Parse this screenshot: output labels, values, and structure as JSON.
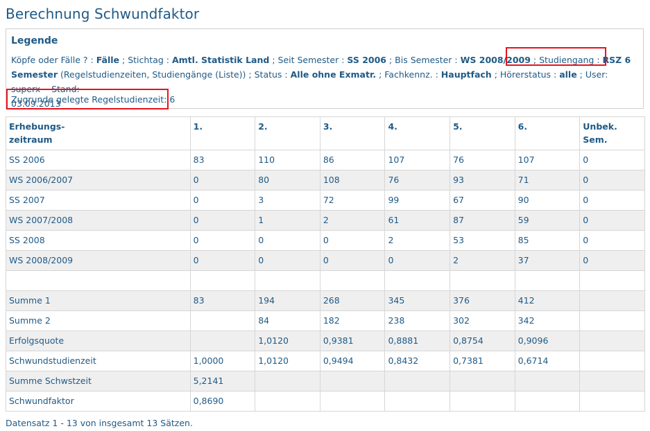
{
  "page": {
    "title": "Berechnung Schwundfaktor",
    "footer": "Datensatz 1 - 13 von insgesamt 13 Sätzen."
  },
  "legend": {
    "title": "Legende",
    "items": [
      {
        "label": "Köpfe oder Fälle ? :",
        "value": "Fälle"
      },
      {
        "label": "Stichtag :",
        "value": "Amtl. Statistik Land"
      },
      {
        "label": "Seit Semester :",
        "value": "SS 2006"
      },
      {
        "label": "Bis Semester :",
        "value": "WS 2008/2009"
      },
      {
        "label": "Studiengang :",
        "value": "RSZ 6"
      },
      {
        "label": "",
        "value": "Semester",
        "suffix": "(Regelstudienzeiten, Studiengänge (Liste))"
      },
      {
        "label": "Status :",
        "value": "Alle ohne Exmatr."
      },
      {
        "label": "Fachkennz. :",
        "value": "Hauptfach"
      },
      {
        "label": "Hörerstatus :",
        "value": "alle"
      }
    ],
    "user": "User: superx",
    "stand": "Stand:",
    "date": "03.09.2013",
    "regelstudienzeit": "Zugrunde gelegte Regelstudienzeit: 6"
  },
  "table": {
    "headers": [
      [
        "Erhebungs-",
        "zeitraum"
      ],
      [
        "1.",
        ""
      ],
      [
        "2.",
        ""
      ],
      [
        "3.",
        ""
      ],
      [
        "4.",
        ""
      ],
      [
        "5.",
        ""
      ],
      [
        "6.",
        ""
      ],
      [
        "Unbek.",
        "Sem."
      ]
    ],
    "rows": [
      [
        "SS 2006",
        "83",
        "110",
        "86",
        "107",
        "76",
        "107",
        "0"
      ],
      [
        "WS 2006/2007",
        "0",
        "80",
        "108",
        "76",
        "93",
        "71",
        "0"
      ],
      [
        "SS 2007",
        "0",
        "3",
        "72",
        "99",
        "67",
        "90",
        "0"
      ],
      [
        "WS 2007/2008",
        "0",
        "1",
        "2",
        "61",
        "87",
        "59",
        "0"
      ],
      [
        "SS 2008",
        "0",
        "0",
        "0",
        "2",
        "53",
        "85",
        "0"
      ],
      [
        "WS 2008/2009",
        "0",
        "0",
        "0",
        "0",
        "2",
        "37",
        "0"
      ],
      [
        "",
        "",
        "",
        "",
        "",
        "",
        "",
        ""
      ],
      [
        "Summe 1",
        "83",
        "194",
        "268",
        "345",
        "376",
        "412",
        ""
      ],
      [
        "Summe 2",
        "",
        "84",
        "182",
        "238",
        "302",
        "342",
        ""
      ],
      [
        "Erfolgsquote",
        "",
        "1,0120",
        "0,9381",
        "0,8881",
        "0,8754",
        "0,9096",
        ""
      ],
      [
        "Schwundstudienzeit",
        "1,0000",
        "1,0120",
        "0,9494",
        "0,8432",
        "0,7381",
        "0,6714",
        ""
      ],
      [
        "Summe Schwstzeit",
        "5,2141",
        "",
        "",
        "",
        "",
        "",
        ""
      ],
      [
        "Schwundfaktor",
        "0,8690",
        "",
        "",
        "",
        "",
        "",
        ""
      ]
    ]
  },
  "colors": {
    "text": "#1f5a86",
    "highlight": "#e8121b",
    "row_alt": "#efefef",
    "border": "#d6d6d6"
  }
}
